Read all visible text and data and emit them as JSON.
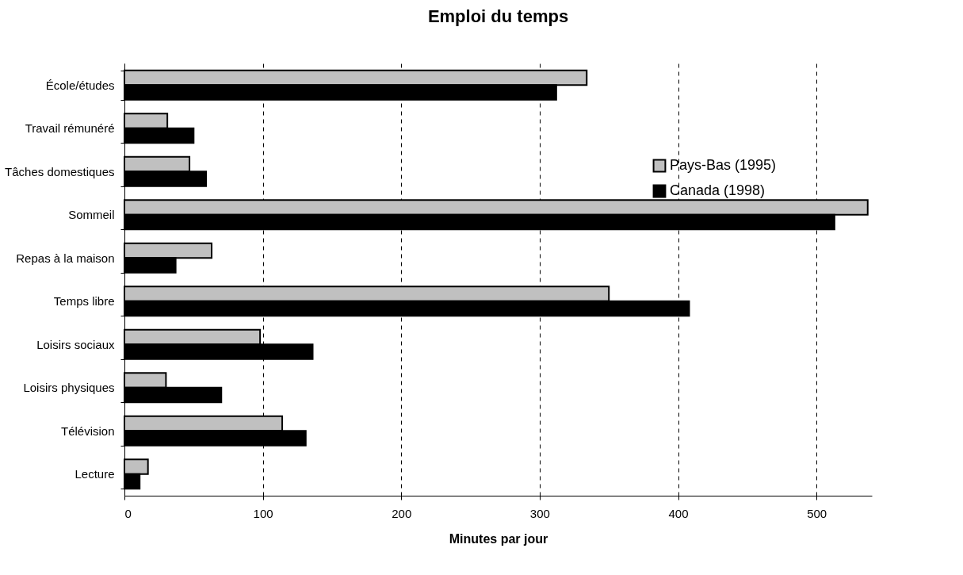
{
  "chart_data": {
    "type": "bar",
    "orientation": "horizontal",
    "title": "Emploi du temps",
    "xlabel": "Minutes par jour",
    "categories": [
      "École/études",
      "Travail rémunéré",
      "Tâches domestiques",
      "Sommeil",
      "Repas à la maison",
      "Temps libre",
      "Loisirs sociaux",
      "Loisirs physiques",
      "Télévision",
      "Lecture"
    ],
    "series": [
      {
        "name": "Pays-Bas (1995)",
        "color": "#c0c0c0",
        "values": [
          334,
          31,
          47,
          537,
          63,
          350,
          98,
          30,
          114,
          17
        ]
      },
      {
        "name": "Canada (1998)",
        "color": "#000000",
        "values": [
          312,
          50,
          59,
          513,
          37,
          408,
          136,
          70,
          131,
          11
        ]
      }
    ],
    "xlim": [
      0,
      540
    ],
    "xticks": [
      0,
      100,
      200,
      300,
      400,
      500
    ],
    "grid": "x",
    "legend": "top right"
  }
}
